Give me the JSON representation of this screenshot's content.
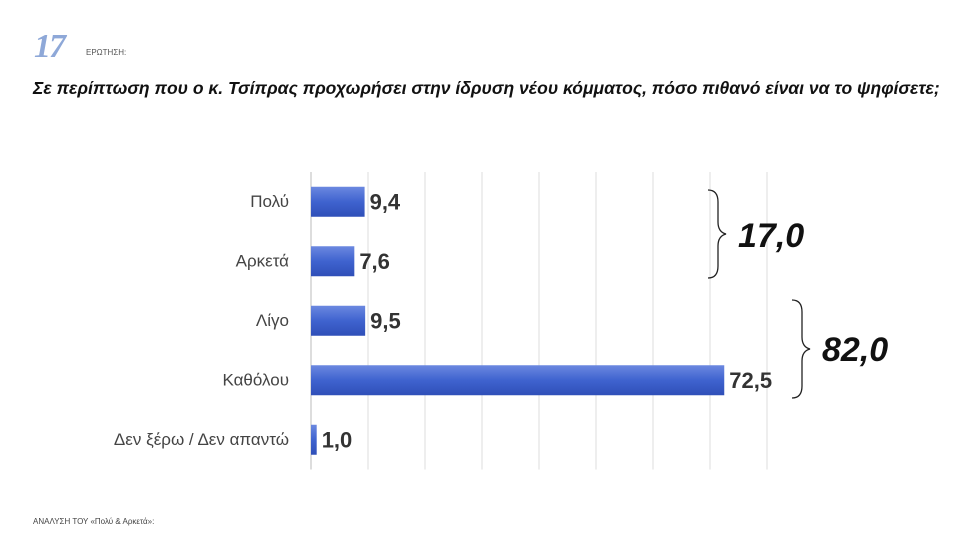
{
  "header": {
    "number": "17",
    "label": "ΕΡΩΤΗΣΗ:"
  },
  "chart_data": {
    "type": "hbar",
    "title": "Σε περίπτωση που ο κ. Τσίπρας προχωρήσει στην ίδρυση νέου κόμματος, πόσο πιθανό είναι να το ψηφίσετε;",
    "categories": [
      "Πολύ",
      "Αρκετά",
      "Λίγο",
      "Καθόλου",
      "Δεν ξέρω / Δεν απαντώ"
    ],
    "values": [
      9.4,
      7.6,
      9.5,
      72.5,
      1.0
    ],
    "value_labels": [
      "9,4",
      "7,6",
      "9,5",
      "72,5",
      "1,0"
    ],
    "color": "#3f63cf",
    "xlim": [
      0,
      80
    ],
    "xticks": [
      0,
      10,
      20,
      30,
      40,
      50,
      60,
      70,
      80
    ],
    "grid": true,
    "annotations": [
      "17,0",
      "82,0"
    ]
  },
  "footer": "ΑΝΑΛΥΣΗ ΤΟΥ «Πολύ & Αρκετά»:"
}
